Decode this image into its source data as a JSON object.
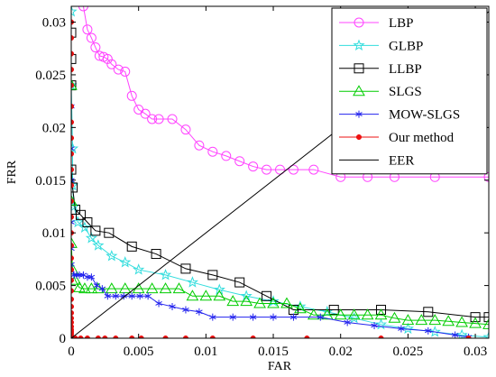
{
  "chart_data": {
    "type": "line",
    "xlabel": "FAR",
    "ylabel": "FRR",
    "xlim": [
      0,
      0.031
    ],
    "ylim": [
      0,
      0.0315
    ],
    "xticks": [
      0,
      0.005,
      0.01,
      0.015,
      0.02,
      0.025,
      0.03
    ],
    "xtick_labels": [
      "0",
      "0.005",
      "0.01",
      "0.015",
      "0.02",
      "0.025",
      "0.03"
    ],
    "yticks": [
      0,
      0.005,
      0.01,
      0.015,
      0.02,
      0.025,
      0.03
    ],
    "ytick_labels": [
      "0",
      "0.005",
      "0.01",
      "0.015",
      "0.02",
      "0.025",
      "0.03"
    ],
    "grid": false,
    "legend_position": "top-right",
    "series": [
      {
        "name": "LBP",
        "color": "#ff44ff",
        "marker": "circle",
        "x": [
          0.0009,
          0.0012,
          0.0015,
          0.0018,
          0.0021,
          0.0024,
          0.0027,
          0.003,
          0.0035,
          0.004,
          0.0045,
          0.005,
          0.0055,
          0.006,
          0.0065,
          0.0075,
          0.0085,
          0.0095,
          0.0105,
          0.0115,
          0.0125,
          0.0135,
          0.0145,
          0.0155,
          0.0165,
          0.018,
          0.02,
          0.022,
          0.024,
          0.027,
          0.031
        ],
        "y": [
          0.0315,
          0.0293,
          0.0285,
          0.0276,
          0.0268,
          0.0267,
          0.0265,
          0.026,
          0.0255,
          0.0253,
          0.023,
          0.0217,
          0.0213,
          0.0208,
          0.0208,
          0.0208,
          0.0198,
          0.0183,
          0.0177,
          0.0173,
          0.0168,
          0.0163,
          0.016,
          0.016,
          0.016,
          0.016,
          0.0153,
          0.0153,
          0.0153,
          0.0153,
          0.0153
        ]
      },
      {
        "name": "GLBP",
        "color": "#33dddd",
        "marker": "star",
        "x": [
          0,
          0,
          0.0001,
          0.0001,
          0.0002,
          0.0005,
          0.001,
          0.0015,
          0.002,
          0.003,
          0.004,
          0.005,
          0.007,
          0.009,
          0.011,
          0.013,
          0.015,
          0.017,
          0.019,
          0.021,
          0.023,
          0.025,
          0.027,
          0.029,
          0.031
        ],
        "y": [
          0.031,
          0.024,
          0.018,
          0.0145,
          0.0125,
          0.011,
          0.0105,
          0.0095,
          0.0088,
          0.0078,
          0.0072,
          0.0065,
          0.006,
          0.0053,
          0.0046,
          0.004,
          0.0035,
          0.003,
          0.0025,
          0.0019,
          0.0013,
          0.0009,
          0.0006,
          0.0003,
          0.0001
        ]
      },
      {
        "name": "LLBP",
        "color": "#000000",
        "marker": "square",
        "x": [
          0,
          0,
          0,
          0,
          0.0001,
          0.0003,
          0.0007,
          0.0012,
          0.0018,
          0.0028,
          0.0045,
          0.0063,
          0.0085,
          0.0105,
          0.0125,
          0.0145,
          0.0165,
          0.0195,
          0.023,
          0.0265,
          0.03,
          0.031
        ],
        "y": [
          0.029,
          0.0265,
          0.024,
          0.016,
          0.0143,
          0.0122,
          0.0117,
          0.011,
          0.0102,
          0.01,
          0.0087,
          0.008,
          0.0066,
          0.006,
          0.0053,
          0.004,
          0.0027,
          0.0027,
          0.0027,
          0.0025,
          0.002,
          0.002
        ]
      },
      {
        "name": "SLGS",
        "color": "#00cc00",
        "marker": "triangle",
        "x": [
          0,
          0,
          0,
          0.0001,
          0.0003,
          0.0006,
          0.001,
          0.0015,
          0.002,
          0.003,
          0.004,
          0.005,
          0.006,
          0.007,
          0.008,
          0.009,
          0.01,
          0.011,
          0.012,
          0.013,
          0.014,
          0.015,
          0.016,
          0.017,
          0.018,
          0.019,
          0.02,
          0.021,
          0.022,
          0.023,
          0.024,
          0.025,
          0.026,
          0.027,
          0.028,
          0.029,
          0.03,
          0.031
        ],
        "y": [
          0.024,
          0.013,
          0.009,
          0.0065,
          0.0055,
          0.0048,
          0.0047,
          0.0047,
          0.0047,
          0.0047,
          0.0047,
          0.0047,
          0.0047,
          0.0047,
          0.0047,
          0.004,
          0.004,
          0.004,
          0.0035,
          0.0035,
          0.0033,
          0.0033,
          0.0033,
          0.0028,
          0.0022,
          0.0022,
          0.0022,
          0.0022,
          0.0022,
          0.0022,
          0.0019,
          0.0017,
          0.0017,
          0.0017,
          0.0016,
          0.0015,
          0.0014,
          0.0013
        ]
      },
      {
        "name": "MOW-SLGS",
        "color": "#2222ee",
        "marker": "asterisk",
        "x": [
          0,
          0,
          0,
          0,
          0,
          0,
          0.0002,
          0.0004,
          0.0006,
          0.0009,
          0.0012,
          0.0015,
          0.0019,
          0.0023,
          0.0027,
          0.0033,
          0.0039,
          0.0045,
          0.0051,
          0.0057,
          0.0065,
          0.0075,
          0.0085,
          0.0095,
          0.0105,
          0.012,
          0.0135,
          0.015,
          0.0165,
          0.0185,
          0.0205,
          0.0225,
          0.0245,
          0.0265,
          0.0285,
          0.0295
        ],
        "y": [
          0.022,
          0.018,
          0.015,
          0.011,
          0.0085,
          0.007,
          0.006,
          0.006,
          0.006,
          0.006,
          0.0058,
          0.0058,
          0.005,
          0.0047,
          0.004,
          0.004,
          0.004,
          0.004,
          0.004,
          0.004,
          0.0033,
          0.003,
          0.0027,
          0.0025,
          0.002,
          0.002,
          0.002,
          0.002,
          0.002,
          0.002,
          0.0015,
          0.0012,
          0.0009,
          0.0007,
          0.0003,
          0.0001
        ]
      },
      {
        "name": "Our method",
        "color": "#ee1111",
        "marker": "dot",
        "x": [
          0,
          0,
          0,
          0,
          0,
          0,
          0,
          0,
          0,
          0,
          0,
          0,
          0,
          0,
          0,
          0,
          0,
          0,
          0,
          0,
          0,
          0,
          0,
          0,
          0,
          0,
          0,
          0,
          0,
          0,
          0.0003,
          0.0007,
          0.0012,
          0.002,
          0.0025,
          0.0033,
          0.0045,
          0.0052,
          0.007,
          0.0085,
          0.0105,
          0.0135,
          0.0175,
          0.023,
          0.0295
        ],
        "y": [
          0.03,
          0.0285,
          0.027,
          0.0255,
          0.024,
          0.022,
          0.0205,
          0.019,
          0.0175,
          0.016,
          0.0145,
          0.013,
          0.0115,
          0.01,
          0.0088,
          0.0076,
          0.0065,
          0.0055,
          0.0045,
          0.0037,
          0.003,
          0.0024,
          0.0019,
          0.0015,
          0.0011,
          0.0008,
          0.0006,
          0.0004,
          0.0002,
          0.0001,
          0,
          0,
          0,
          0,
          0,
          0,
          0,
          0,
          0,
          0,
          0,
          0,
          0,
          0,
          0
        ]
      },
      {
        "name": "EER",
        "color": "#000000",
        "marker": "none",
        "x": [
          0,
          0.0315
        ],
        "y": [
          0,
          0.0315
        ]
      }
    ]
  }
}
